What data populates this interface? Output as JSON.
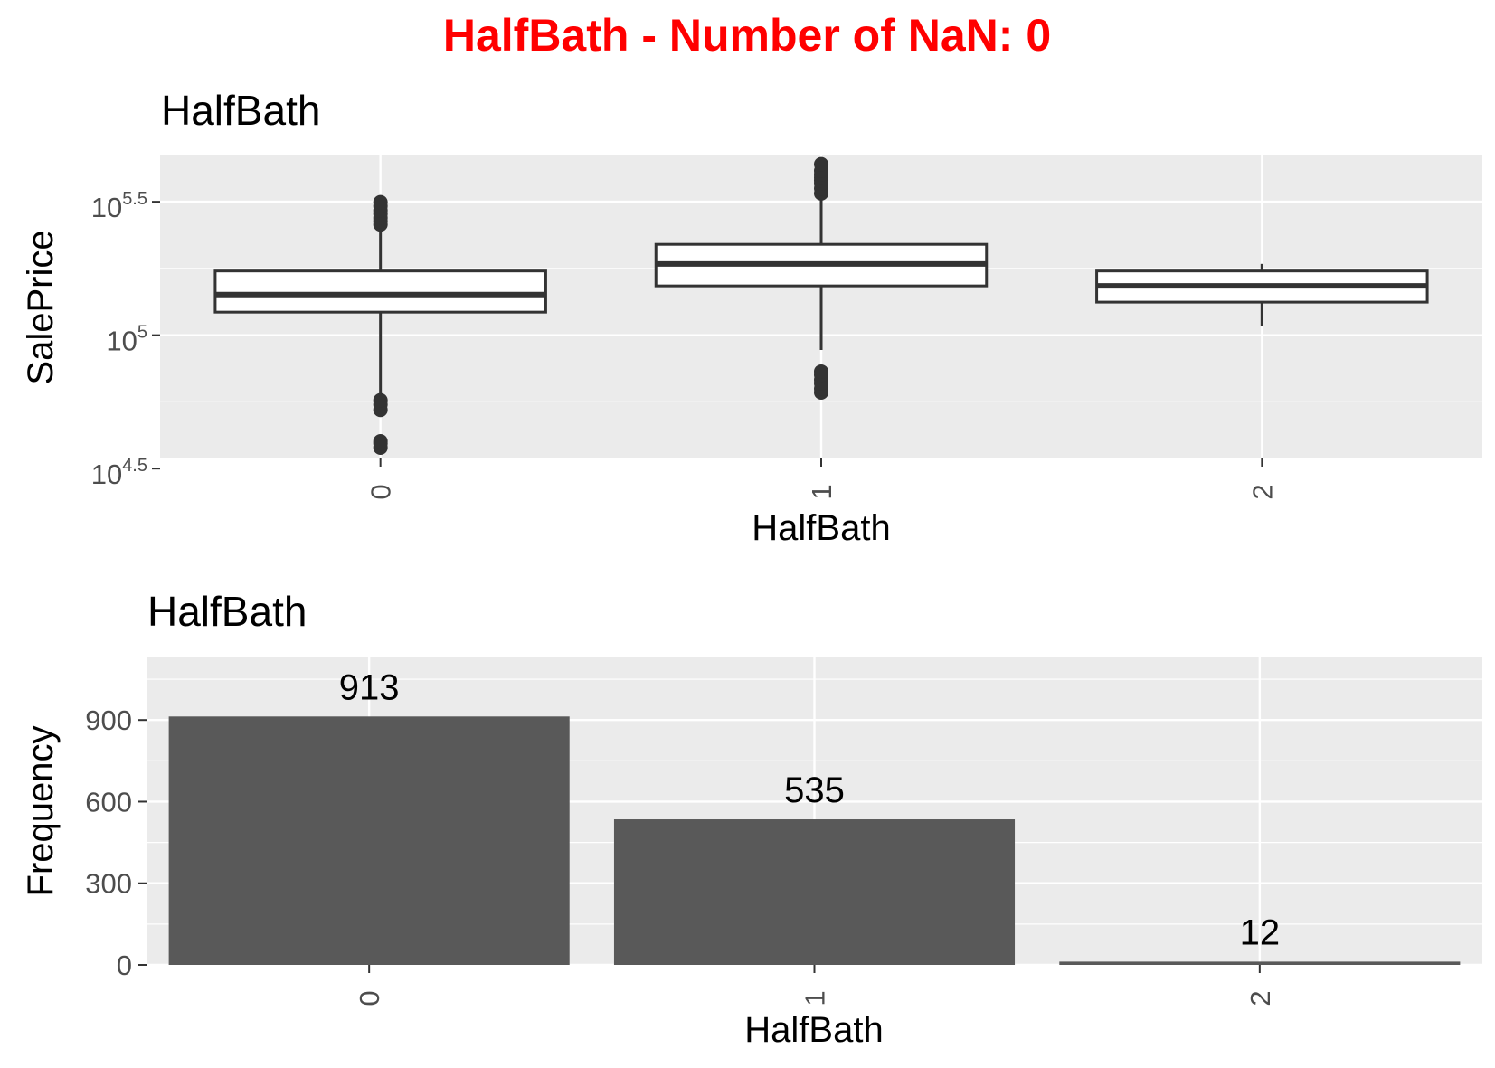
{
  "main_title": "HalfBath - Number of NaN: 0",
  "chart_data": [
    {
      "type": "box",
      "title": "HalfBath",
      "xlabel": "HalfBath",
      "ylabel": "SalePrice",
      "y_scale": "log10",
      "categories": [
        "0",
        "1",
        "2"
      ],
      "ylim": [
        34500,
        475000
      ],
      "y_ticks": [
        {
          "base": "10",
          "exp": "4.5",
          "value": 31623
        },
        {
          "base": "10",
          "exp": "5",
          "value": 100000
        },
        {
          "base": "10",
          "exp": "5.5",
          "value": 316228
        }
      ],
      "grid": true,
      "boxes": [
        {
          "category": "0",
          "q1": 122000,
          "median": 142000,
          "q3": 174000,
          "whisker_low": 53000,
          "whisker_high": 250000,
          "outliers": [
            37900,
            39300,
            40000,
            52500,
            55000,
            57000,
            260000,
            268000,
            275000,
            285000,
            293000,
            305000,
            315000
          ]
        },
        {
          "category": "1",
          "q1": 153000,
          "median": 185000,
          "q3": 219000,
          "whisker_low": 88000,
          "whisker_high": 330000,
          "outliers": [
            61000,
            63000,
            66000,
            68000,
            71000,
            73000,
            340000,
            355000,
            370000,
            380000,
            390000,
            400000,
            413000,
            437000
          ]
        },
        {
          "category": "2",
          "q1": 133000,
          "median": 153000,
          "q3": 174000,
          "whisker_low": 108000,
          "whisker_high": 185000,
          "outliers": []
        }
      ]
    },
    {
      "type": "bar",
      "title": "HalfBath",
      "xlabel": "HalfBath",
      "ylabel": "Frequency",
      "categories": [
        "0",
        "1",
        "2"
      ],
      "values": [
        913,
        535,
        12
      ],
      "data_labels": [
        "913",
        "535",
        "12"
      ],
      "ylim": [
        0,
        1130
      ],
      "y_ticks": [
        0,
        300,
        600,
        900
      ],
      "grid": true,
      "bar_color": "#595959"
    }
  ],
  "colors": {
    "title": "#ff0000",
    "panel_background": "#ebebeb",
    "grid": "#ffffff",
    "box_fill": "#ffffff",
    "box_line": "#333333",
    "bar_fill": "#595959",
    "tick_text": "#4d4d4d"
  }
}
